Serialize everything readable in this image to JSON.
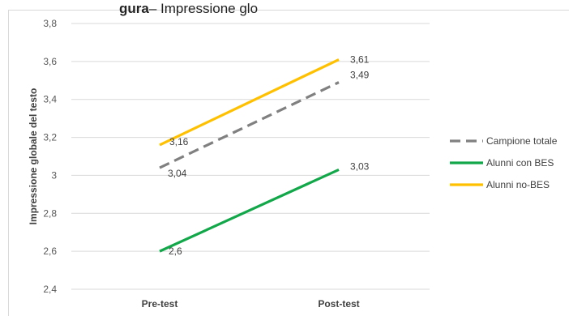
{
  "header": {
    "caption_bold": "gura",
    "caption_rest": "– Impressione glo"
  },
  "chart_data": {
    "type": "line",
    "x": [
      "Pre-test",
      "Post-test"
    ],
    "ylabel": "Impressione globale del testo",
    "xlabel": "",
    "ylim": [
      2.4,
      3.8
    ],
    "yticks": [
      2.4,
      2.6,
      2.8,
      3,
      3.2,
      3.4,
      3.6,
      3.8
    ],
    "ytick_labels": [
      "2,4",
      "2,6",
      "2,8",
      "3",
      "3,2",
      "3,4",
      "3,6",
      "3,8"
    ],
    "grid": true,
    "legend_position": "right",
    "series": [
      {
        "name": "Campione totale",
        "values": [
          3.04,
          3.49
        ],
        "labels": [
          "3,04",
          "3,49"
        ],
        "color": "#808080",
        "dash": true
      },
      {
        "name": "Alunni con BES",
        "values": [
          2.6,
          3.03
        ],
        "labels": [
          "2,6",
          "3,03"
        ],
        "color": "#12a84a",
        "dash": false
      },
      {
        "name": "Alunni no-BES",
        "values": [
          3.16,
          3.61
        ],
        "labels": [
          "3,16",
          "3,61"
        ],
        "color": "#ffc000",
        "dash": false
      }
    ]
  }
}
